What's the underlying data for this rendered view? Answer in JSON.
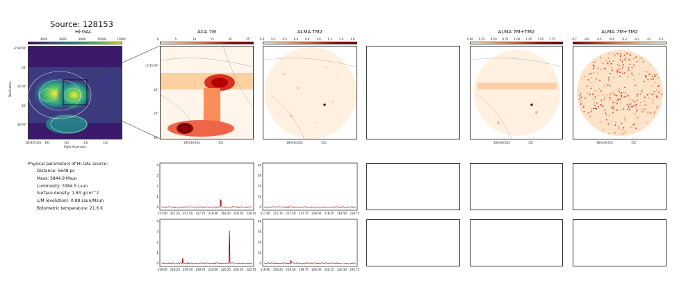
{
  "title": "Source: 128153",
  "panels": {
    "higal": {
      "title": "Hi-GAL",
      "cbar_ticks": [
        "4000",
        "6000",
        "8000",
        "10000",
        "12000"
      ],
      "y_ticks": [
        "-3°34'00\"",
        "30\"",
        "35'00\"",
        "30\"",
        "36'00\""
      ],
      "x_ticks": [
        "18h43m20s",
        "18s",
        "16s",
        "14s",
        "12s"
      ],
      "xlabel": "Right Ascension",
      "ylabel": "Declination"
    },
    "aca7m": {
      "title": "ACA 7M",
      "cbar_ticks": [
        "0",
        "5",
        "10",
        "15",
        "20",
        "25"
      ],
      "y_ticks": [
        "-3°35'00\"",
        "10\"",
        "20\"",
        "30\""
      ],
      "x_ticks": [
        "18h43m16s",
        "15s"
      ]
    },
    "almatm2": {
      "title": "ALMA TM2",
      "cbar_ticks": [
        "0.0",
        "0.2",
        "0.4",
        "0.6",
        "0.8",
        "1.0",
        "1.2",
        "1.4",
        "1.6"
      ],
      "x_ticks": [
        "18h43m16s",
        "15s"
      ]
    },
    "alma7mtm2": {
      "title": "ALMA 7M+TM2",
      "cbar_ticks": [
        "0.00",
        "0.25",
        "0.50",
        "0.75",
        "1.00",
        "1.25",
        "1.50",
        "1.75"
      ],
      "x_ticks": [
        "18h43m16s",
        "15s"
      ]
    },
    "alma7mtm2_neg": {
      "title": "ALMA 7M+TM2",
      "cbar_ticks": [
        "-0.7",
        "-0.6",
        "-0.5",
        "-0.4",
        "-0.3",
        "-0.2",
        "-0.1",
        "0.0"
      ],
      "x_ticks": [
        "18h43m16s",
        "15s"
      ]
    }
  },
  "params": {
    "heading": "Physical parameters of Hi-GAL source:",
    "lines": [
      "Distance: 5648 pc",
      "Mass: 3844.9 Msun",
      "Luminosity: 3384.5 Lsun",
      "Surface density: 1.83 g/cm^2",
      "L/M (evolution): 0.88 Lsun/Msun",
      "Bolometric temperature: 21.6 K"
    ]
  },
  "chart_data": [
    {
      "type": "line",
      "panel": "spectrum_row1_aca7m",
      "x": [
        217.0,
        217.25,
        217.5,
        217.75,
        218.0,
        218.15,
        218.2,
        218.25,
        218.5,
        218.75
      ],
      "values": [
        0,
        0,
        0,
        0,
        0.05,
        0.7,
        0.1,
        0,
        0,
        0
      ],
      "xticks": [
        "217.00",
        "217.25",
        "217.50",
        "217.75",
        "218.00",
        "218.25",
        "218.50",
        "218.75"
      ],
      "yticks": [
        "0",
        "1",
        "2",
        "3",
        "4"
      ],
      "ylim": [
        -0.3,
        4.2
      ],
      "xlim": [
        216.95,
        218.8
      ]
    },
    {
      "type": "line",
      "panel": "spectrum_row1_almatm2",
      "x": [
        217.0,
        217.5,
        218.0,
        218.5,
        218.75
      ],
      "values": [
        0,
        0,
        0,
        0,
        0
      ],
      "xticks": [
        "217.00",
        "217.25",
        "217.50",
        "217.75",
        "218.00",
        "218.25",
        "218.50",
        "218.75"
      ],
      "yticks": [
        "0",
        "10",
        "20",
        "30",
        "40"
      ],
      "ylim": [
        -3,
        42
      ],
      "xlim": [
        216.95,
        218.8
      ]
    },
    {
      "type": "line",
      "panel": "spectrum_row2_aca7m",
      "x": [
        219.0,
        219.25,
        219.4,
        219.5,
        219.75,
        220.0,
        220.25,
        220.32,
        220.4,
        220.5,
        220.75
      ],
      "values": [
        0,
        0,
        0.5,
        0,
        0,
        0,
        0,
        3.1,
        0,
        0,
        0
      ],
      "xticks": [
        "219.00",
        "219.25",
        "219.50",
        "219.75",
        "220.00",
        "220.25",
        "220.50",
        "220.75"
      ],
      "yticks": [
        "0",
        "1",
        "2",
        "3",
        "4"
      ],
      "ylim": [
        -0.3,
        4.2
      ],
      "xlim": [
        218.95,
        220.8
      ]
    },
    {
      "type": "line",
      "panel": "spectrum_row2_almatm2",
      "x": [
        219.0,
        219.4,
        219.5,
        220.0,
        220.75
      ],
      "values": [
        0,
        0,
        3,
        0,
        0
      ],
      "xticks": [
        "219.00",
        "219.25",
        "219.50",
        "219.75",
        "220.00",
        "220.25",
        "220.50",
        "220.75"
      ],
      "yticks": [
        "0",
        "10",
        "20",
        "30",
        "40"
      ],
      "ylim": [
        -3,
        42
      ],
      "xlim": [
        218.95,
        220.8
      ]
    }
  ]
}
